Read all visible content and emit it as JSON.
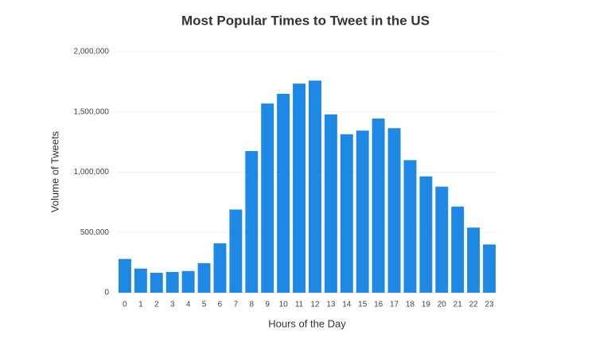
{
  "chart_data": {
    "type": "bar",
    "title": "Most Popular Times to Tweet in the US",
    "x_label": "Hours of the Day",
    "y_label": "Volume of Tweets",
    "categories": [
      "0",
      "1",
      "2",
      "3",
      "4",
      "5",
      "6",
      "7",
      "8",
      "9",
      "10",
      "11",
      "12",
      "13",
      "14",
      "15",
      "16",
      "17",
      "18",
      "19",
      "20",
      "21",
      "22",
      "23"
    ],
    "values": [
      280000,
      200000,
      165000,
      172000,
      180000,
      245000,
      410000,
      690000,
      1175000,
      1570000,
      1650000,
      1735000,
      1760000,
      1480000,
      1315000,
      1345000,
      1445000,
      1365000,
      1100000,
      965000,
      880000,
      715000,
      540000,
      400000
    ],
    "color": "#1e88e5",
    "ylim": [
      0,
      2000000
    ],
    "yticks": [
      0,
      {
        "value": 500000,
        "label": "500,000"
      },
      {
        "value": 1000000,
        "label": "1,000,000"
      },
      {
        "value": 1500000,
        "label": "1,500,000"
      },
      {
        "value": 2000000,
        "label": "2,000,000"
      }
    ],
    "grid": true
  }
}
